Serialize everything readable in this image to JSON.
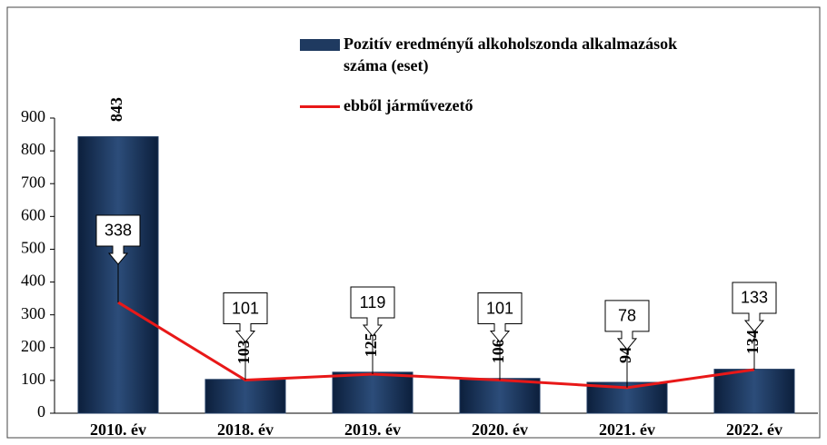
{
  "chart_data": {
    "type": "bar-line",
    "categories": [
      "2010. év",
      "2018. év",
      "2019. év",
      "2020. év",
      "2021. év",
      "2022. év"
    ],
    "series": [
      {
        "name": "Pozitív eredményű alkoholszonda alkalmazások száma (eset)",
        "type": "bar",
        "color": "#1f3a60",
        "values": [
          843,
          103,
          125,
          106,
          94,
          134
        ]
      },
      {
        "name": "ebből járművezető",
        "type": "line",
        "color": "#e81818",
        "values": [
          338,
          101,
          119,
          101,
          78,
          133
        ]
      }
    ],
    "ylim": [
      0,
      900
    ],
    "yticks": [
      0,
      100,
      200,
      300,
      400,
      500,
      600,
      700,
      800,
      900
    ],
    "grid": false
  }
}
